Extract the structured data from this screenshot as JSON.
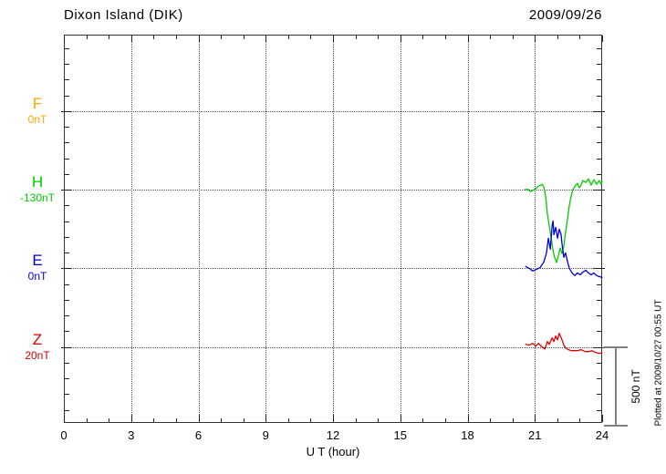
{
  "chart_data": {
    "type": "line",
    "title": "Dixon Island (DIK)",
    "date": "2009/09/26",
    "xlabel": "U T (hour)",
    "x_range_hours": [
      0,
      24
    ],
    "x_tick_labels": [
      "0",
      "3",
      "6",
      "9",
      "12",
      "15",
      "18",
      "21",
      "24"
    ],
    "x_major_tick_hours": [
      0,
      3,
      6,
      9,
      12,
      15,
      18,
      21,
      24
    ],
    "x_minor_tick_step_hours": 1,
    "grid": "dotted vertical lines every 3 hours; dotted horizontal baseline per component",
    "legend_position": "left margin, one colored label per component",
    "scale_bar": {
      "label": "500 nT",
      "span_nT": 500
    },
    "footer_note": "Plotted at 2009/10/27 00:55 UT",
    "axis_color": "#333333",
    "series": [
      {
        "name": "F",
        "letter": "F",
        "baseline_label": "0nT",
        "baseline_nT": 0,
        "color": "#FFA500",
        "points": []
      },
      {
        "name": "H",
        "letter": "H",
        "baseline_label": "-130nT",
        "baseline_nT": -130,
        "color": "#00CC00",
        "points": [
          [
            20.55,
            -130
          ],
          [
            20.7,
            -127
          ],
          [
            20.79,
            -142
          ],
          [
            20.9,
            -135
          ],
          [
            21.04,
            -124
          ],
          [
            21.16,
            -107
          ],
          [
            21.25,
            -102
          ],
          [
            21.32,
            -95
          ],
          [
            21.4,
            -113
          ],
          [
            21.48,
            -170
          ],
          [
            21.56,
            -286
          ],
          [
            21.69,
            -402
          ],
          [
            21.81,
            -518
          ],
          [
            21.89,
            -564
          ],
          [
            21.93,
            -575
          ],
          [
            21.97,
            -593
          ],
          [
            22.05,
            -547
          ],
          [
            22.13,
            -501
          ],
          [
            22.21,
            -536
          ],
          [
            22.29,
            -489
          ],
          [
            22.37,
            -402
          ],
          [
            22.46,
            -315
          ],
          [
            22.54,
            -228
          ],
          [
            22.62,
            -170
          ],
          [
            22.7,
            -130
          ],
          [
            22.82,
            -101
          ],
          [
            22.9,
            -90
          ],
          [
            22.98,
            -118
          ],
          [
            23.06,
            -101
          ],
          [
            23.14,
            -72
          ],
          [
            23.27,
            -84
          ],
          [
            23.39,
            -61
          ],
          [
            23.51,
            -101
          ],
          [
            23.63,
            -66
          ],
          [
            23.75,
            -95
          ],
          [
            23.87,
            -72
          ],
          [
            23.95,
            -95
          ],
          [
            24.0,
            -78
          ]
        ]
      },
      {
        "name": "E",
        "letter": "E",
        "baseline_label": "0nT",
        "baseline_nT": 0,
        "color": "#0000DD",
        "points": [
          [
            20.59,
            12
          ],
          [
            20.75,
            0
          ],
          [
            20.91,
            -17
          ],
          [
            21.08,
            -6
          ],
          [
            21.24,
            6
          ],
          [
            21.4,
            41
          ],
          [
            21.52,
            98
          ],
          [
            21.6,
            191
          ],
          [
            21.69,
            122
          ],
          [
            21.77,
            272
          ],
          [
            21.81,
            301
          ],
          [
            21.85,
            214
          ],
          [
            21.93,
            261
          ],
          [
            22.01,
            191
          ],
          [
            22.09,
            249
          ],
          [
            22.17,
            214
          ],
          [
            22.21,
            156
          ],
          [
            22.29,
            70
          ],
          [
            22.37,
            98
          ],
          [
            22.46,
            41
          ],
          [
            22.54,
            0
          ],
          [
            22.66,
            -29
          ],
          [
            22.78,
            -46
          ],
          [
            22.9,
            -29
          ],
          [
            23.02,
            -41
          ],
          [
            23.14,
            -23
          ],
          [
            23.27,
            -12
          ],
          [
            23.39,
            -29
          ],
          [
            23.51,
            -41
          ],
          [
            23.63,
            -29
          ],
          [
            23.75,
            -46
          ],
          [
            23.87,
            -52
          ],
          [
            23.99,
            -58
          ]
        ]
      },
      {
        "name": "Z",
        "letter": "Z",
        "baseline_label": "20nT",
        "baseline_nT": 20,
        "color": "#DD0000",
        "points": [
          [
            20.59,
            37
          ],
          [
            20.75,
            32
          ],
          [
            20.91,
            43
          ],
          [
            21.04,
            26
          ],
          [
            21.16,
            43
          ],
          [
            21.32,
            20
          ],
          [
            21.45,
            8
          ],
          [
            21.56,
            55
          ],
          [
            21.64,
            37
          ],
          [
            21.77,
            78
          ],
          [
            21.85,
            55
          ],
          [
            21.93,
            90
          ],
          [
            22.01,
            66
          ],
          [
            22.09,
            107
          ],
          [
            22.21,
            66
          ],
          [
            22.29,
            32
          ],
          [
            22.37,
            14
          ],
          [
            22.5,
            3
          ],
          [
            22.62,
            -3
          ],
          [
            22.78,
            -3
          ],
          [
            22.9,
            -3
          ],
          [
            23.06,
            3
          ],
          [
            23.23,
            -9
          ],
          [
            23.39,
            -9
          ],
          [
            23.55,
            -3
          ],
          [
            23.71,
            -15
          ],
          [
            23.87,
            -21
          ],
          [
            23.99,
            -15
          ]
        ]
      }
    ]
  }
}
